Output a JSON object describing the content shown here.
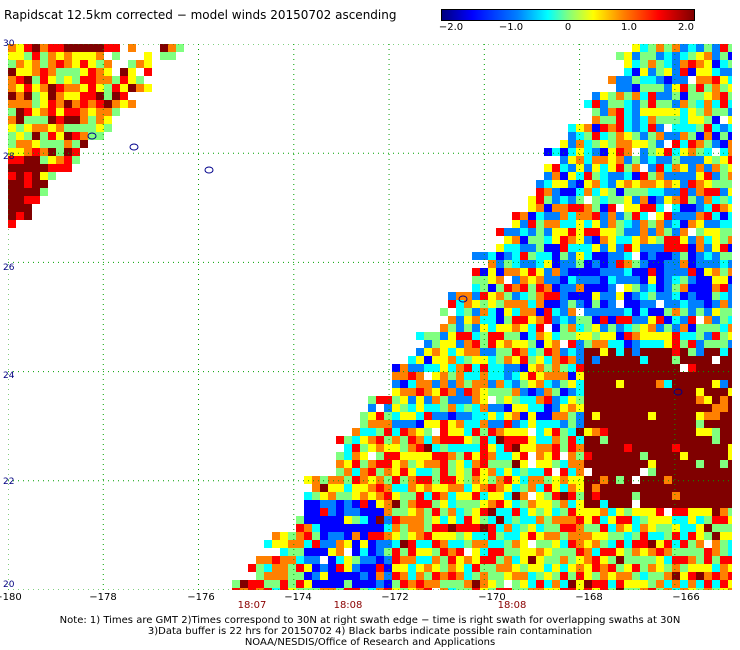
{
  "title": "Rapidscat 12.5km corrected − model winds 20150702 ascending",
  "colorbar": {
    "tick_labels": [
      "−2.0",
      "−1.0",
      "0",
      "1.0",
      "2.0"
    ],
    "colors": [
      "#00007f",
      "#0000ff",
      "#0080ff",
      "#00ffff",
      "#80ff80",
      "#ffff00",
      "#ff8000",
      "#ff0000",
      "#800000"
    ]
  },
  "map": {
    "lon_range": [
      -180,
      -164.8
    ],
    "lat_range": [
      20,
      30
    ],
    "x_tick_labels": [
      "−180",
      "−178",
      "−176",
      "−174",
      "−172",
      "−170",
      "−168",
      "−166"
    ],
    "y_tick_labels": [
      "20",
      "22",
      "24",
      "26",
      "28",
      "30"
    ],
    "grid": "dotted",
    "time_labels": [
      "18:07",
      "18:08",
      "18:08"
    ],
    "coastline_color": "#00008b"
  },
  "notes": [
    "Note: 1) Times are GMT 2)Times correspond to 30N at right swath edge − time is right swath for overlapping swaths at 30N",
    "3)Data buffer is 22 hrs for 20150702 4) Black barbs indicate possible rain contamination",
    "NOAA/NESDIS/Office of Research and Applications"
  ]
}
